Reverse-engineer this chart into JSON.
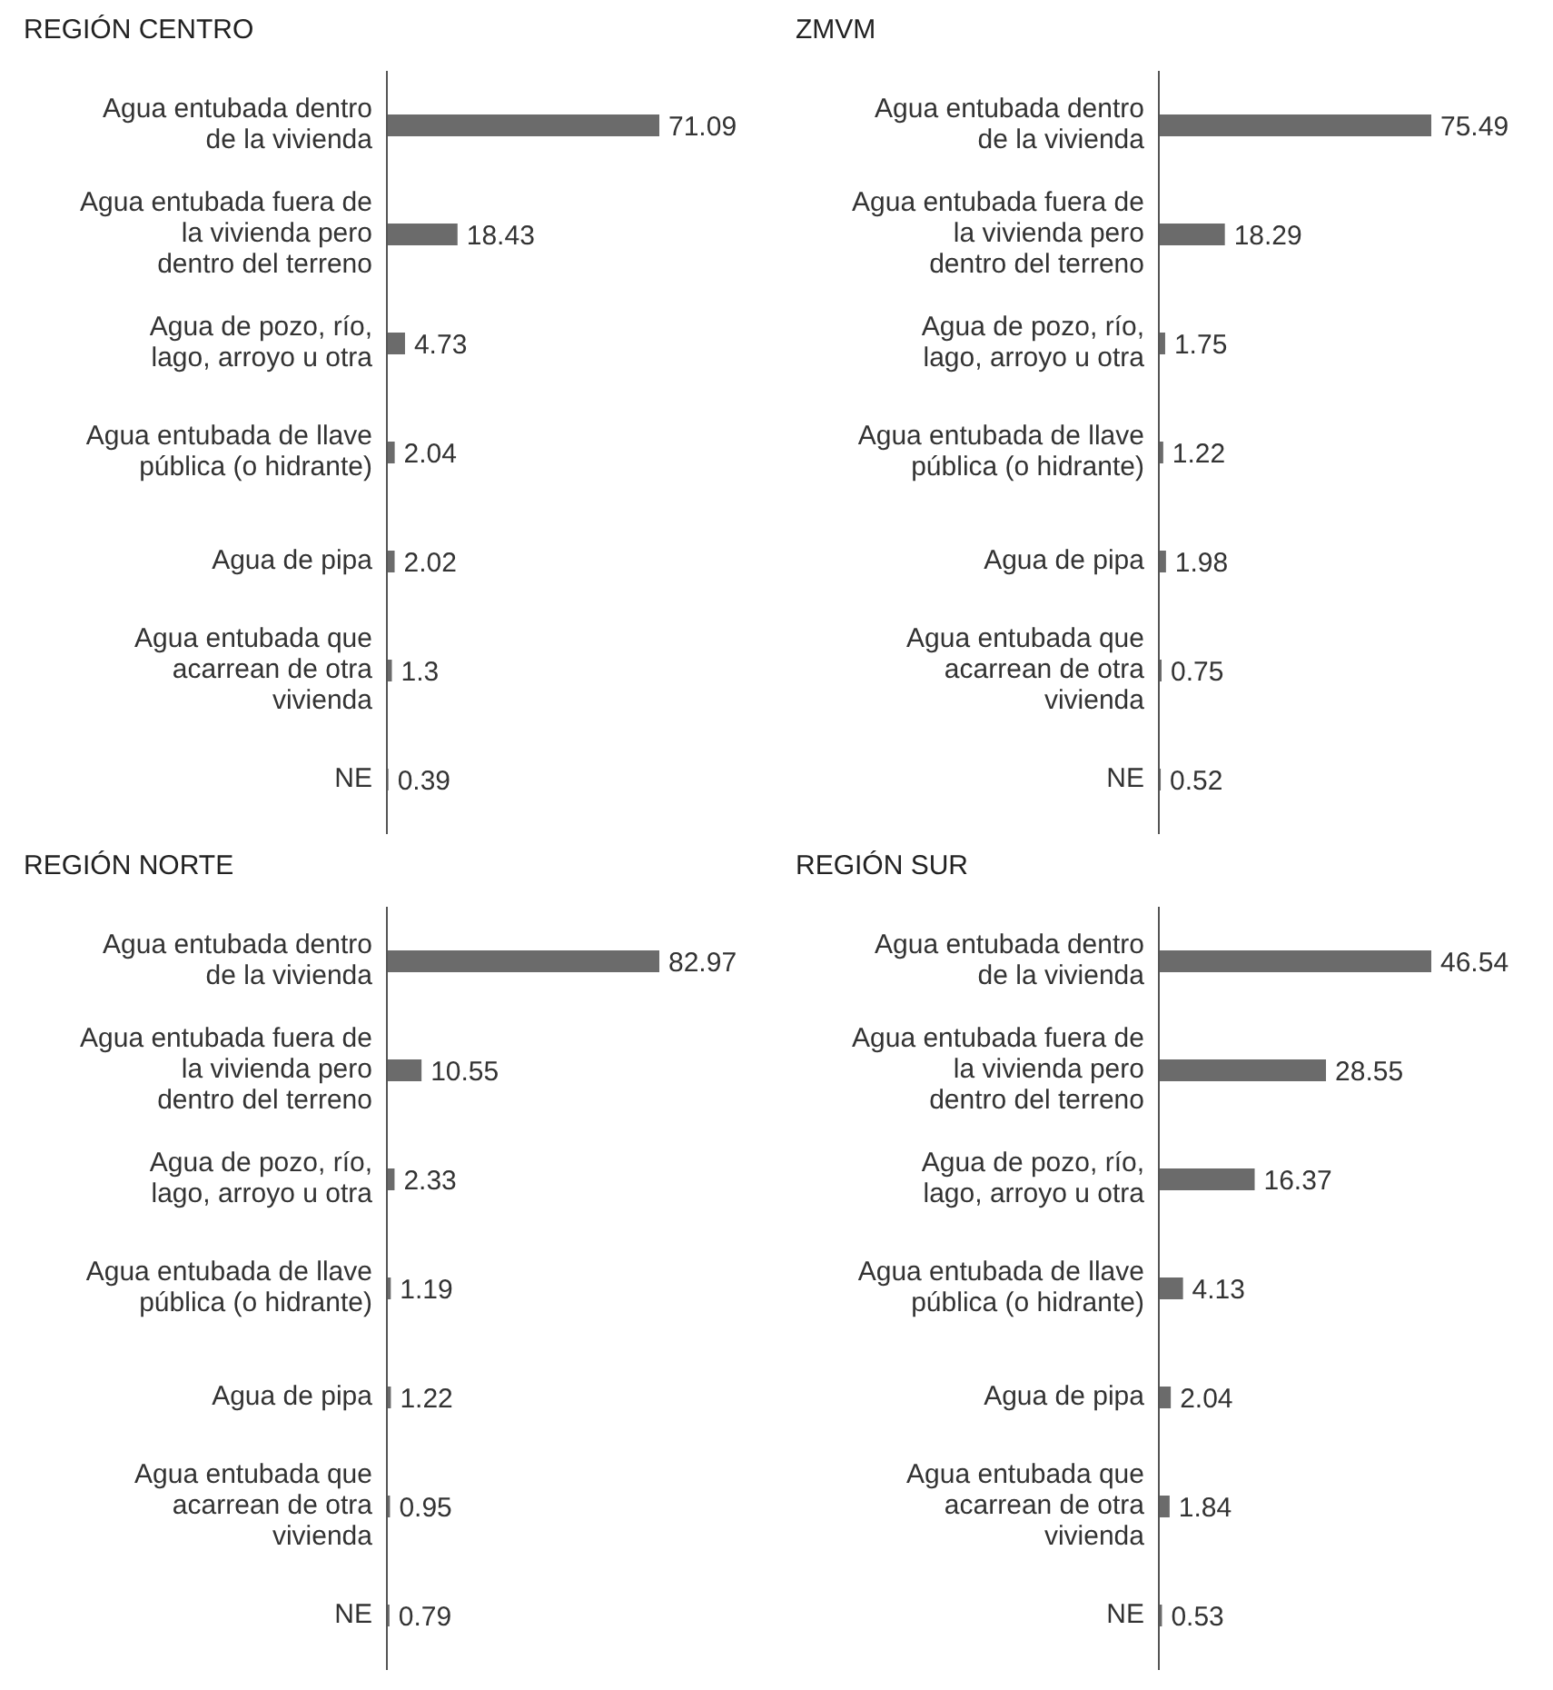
{
  "chart_data": [
    {
      "type": "bar",
      "orientation": "horizontal",
      "title": "REGIÓN CENTRO",
      "categories": [
        "Agua entubada dentro de la vivienda",
        "Agua entubada fuera de la vivienda pero dentro del terreno",
        "Agua de pozo, río, lago, arroyo u otra",
        "Agua entubada de llave pública (o hidrante)",
        "Agua de pipa",
        "Agua entubada que acarrean de otra vivienda",
        "NE"
      ],
      "values": [
        71.09,
        18.43,
        4.73,
        2.04,
        2.02,
        1.3,
        0.39
      ],
      "color": "#6b6b6b",
      "data_labels": true,
      "tick_labels": "y",
      "grid": false
    },
    {
      "type": "bar",
      "orientation": "horizontal",
      "title": "ZMVM",
      "categories": [
        "Agua entubada dentro de la vivienda",
        "Agua entubada fuera de la vivienda pero dentro del terreno",
        "Agua de pozo, río, lago, arroyo u otra",
        "Agua entubada de llave pública (o hidrante)",
        "Agua de pipa",
        "Agua entubada que acarrean de otra vivienda",
        "NE"
      ],
      "values": [
        75.49,
        18.29,
        1.75,
        1.22,
        1.98,
        0.75,
        0.52
      ],
      "color": "#6b6b6b",
      "data_labels": true,
      "tick_labels": "y",
      "grid": false
    },
    {
      "type": "bar",
      "orientation": "horizontal",
      "title": "REGIÓN NORTE",
      "categories": [
        "Agua entubada dentro de la vivienda",
        "Agua entubada fuera de la vivienda pero dentro del terreno",
        "Agua de pozo, río, lago, arroyo u otra",
        "Agua entubada de llave pública (o hidrante)",
        "Agua de pipa",
        "Agua entubada que acarrean de otra vivienda",
        "NE"
      ],
      "values": [
        82.97,
        10.55,
        2.33,
        1.19,
        1.22,
        0.95,
        0.79
      ],
      "color": "#6b6b6b",
      "data_labels": true,
      "tick_labels": "y",
      "grid": false
    },
    {
      "type": "bar",
      "orientation": "horizontal",
      "title": "REGIÓN SUR",
      "categories": [
        "Agua entubada dentro de la vivienda",
        "Agua entubada fuera de la vivienda pero dentro del terreno",
        "Agua de pozo, río, lago, arroyo u otra",
        "Agua entubada de llave pública (o hidrante)",
        "Agua de pipa",
        "Agua entubada que acarrean de otra vivienda",
        "NE"
      ],
      "values": [
        46.54,
        28.55,
        16.37,
        4.13,
        2.04,
        1.84,
        0.53
      ],
      "color": "#6b6b6b",
      "data_labels": true,
      "tick_labels": "y",
      "grid": false
    }
  ]
}
